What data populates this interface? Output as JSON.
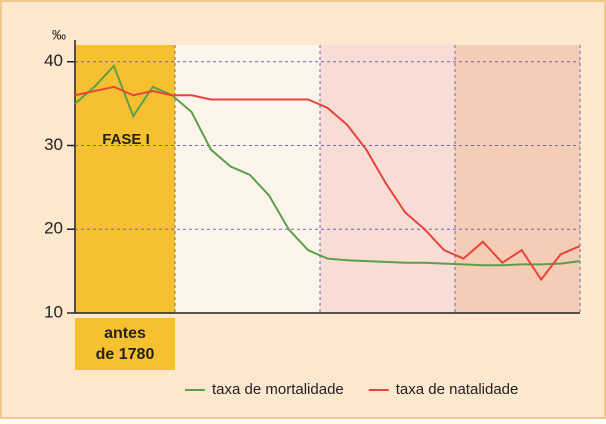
{
  "chart_data": {
    "type": "line",
    "y_unit": "‰",
    "phase_label": "FASE I",
    "period_label": [
      "antes",
      "de 1780"
    ],
    "ylim": [
      10,
      42
    ],
    "yticks": [
      10,
      20,
      30,
      40
    ],
    "grid": true,
    "series": [
      {
        "name": "taxa de mortalidade",
        "color": "#5aa048",
        "values": [
          35,
          37,
          39.5,
          33.5,
          37,
          36,
          34,
          29.5,
          27.5,
          26.5,
          24,
          20,
          17.5,
          16.5,
          16.3,
          16.2,
          16.1,
          16,
          16,
          15.9,
          15.8,
          15.7,
          15.7,
          15.8,
          15.8,
          15.9,
          16.2
        ]
      },
      {
        "name": "taxa de natalidade",
        "color": "#e8443a",
        "values": [
          36,
          36.5,
          37,
          36,
          36.5,
          36,
          36,
          35.5,
          35.5,
          35.5,
          35.5,
          35.5,
          35.5,
          34.5,
          32.5,
          29.5,
          25.5,
          22,
          20,
          17.5,
          16.5,
          18.5,
          16,
          17.5,
          14,
          17,
          18
        ]
      }
    ]
  }
}
